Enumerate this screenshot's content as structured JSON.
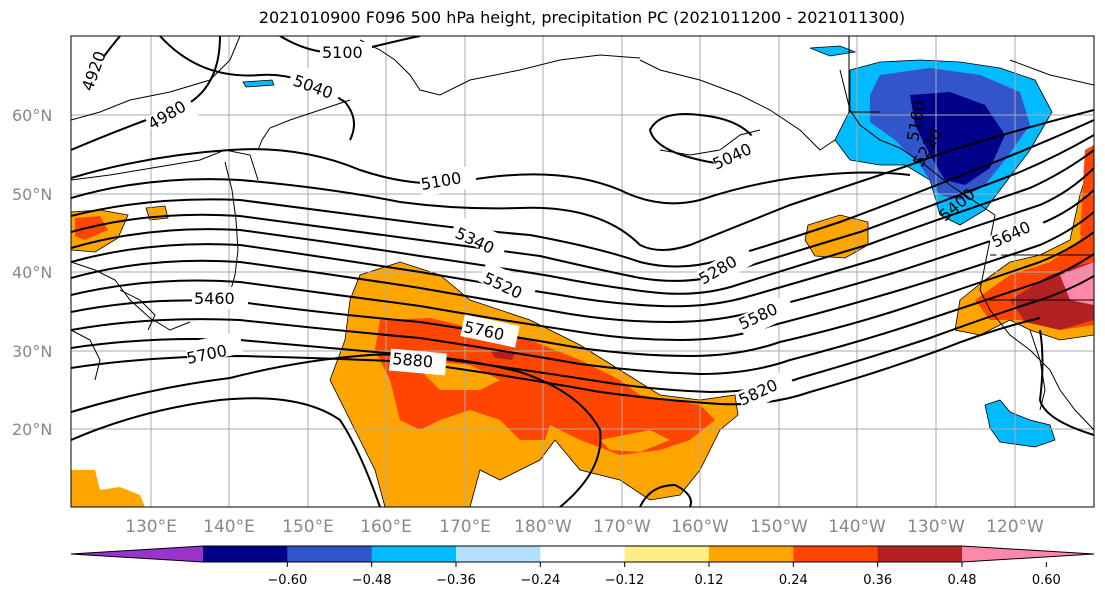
{
  "title": "2021010900 F096 500 hPa height, precipitation PC (2021011200 - 2021011300)",
  "lat_labels": [
    "60°N",
    "50°N",
    "40°N",
    "30°N",
    "20°N"
  ],
  "lon_labels": [
    "130°E",
    "140°E",
    "150°E",
    "160°E",
    "170°E",
    "180°W",
    "170°W",
    "160°W",
    "150°W",
    "140°W",
    "130°W",
    "120°W"
  ],
  "contour_labels": [
    "4920",
    "4980",
    "5040",
    "5100",
    "5100",
    "5040",
    "5340",
    "5520",
    "5460",
    "5700",
    "5760",
    "5880",
    "5820",
    "5580",
    "5280",
    "5640",
    "5400",
    "5160",
    "5220"
  ],
  "colorbar": {
    "ticks": [
      "−0.60",
      "−0.48",
      "−0.36",
      "−0.24",
      "−0.12",
      "0.12",
      "0.24",
      "0.36",
      "0.48",
      "0.60"
    ],
    "colors": [
      "#9933cc",
      "#000088",
      "#3355cc",
      "#00bbff",
      "#b3e0ff",
      "#ffffff",
      "#ffee88",
      "#ffa500",
      "#ff4500",
      "#b22222",
      "#ff88aa"
    ]
  }
}
